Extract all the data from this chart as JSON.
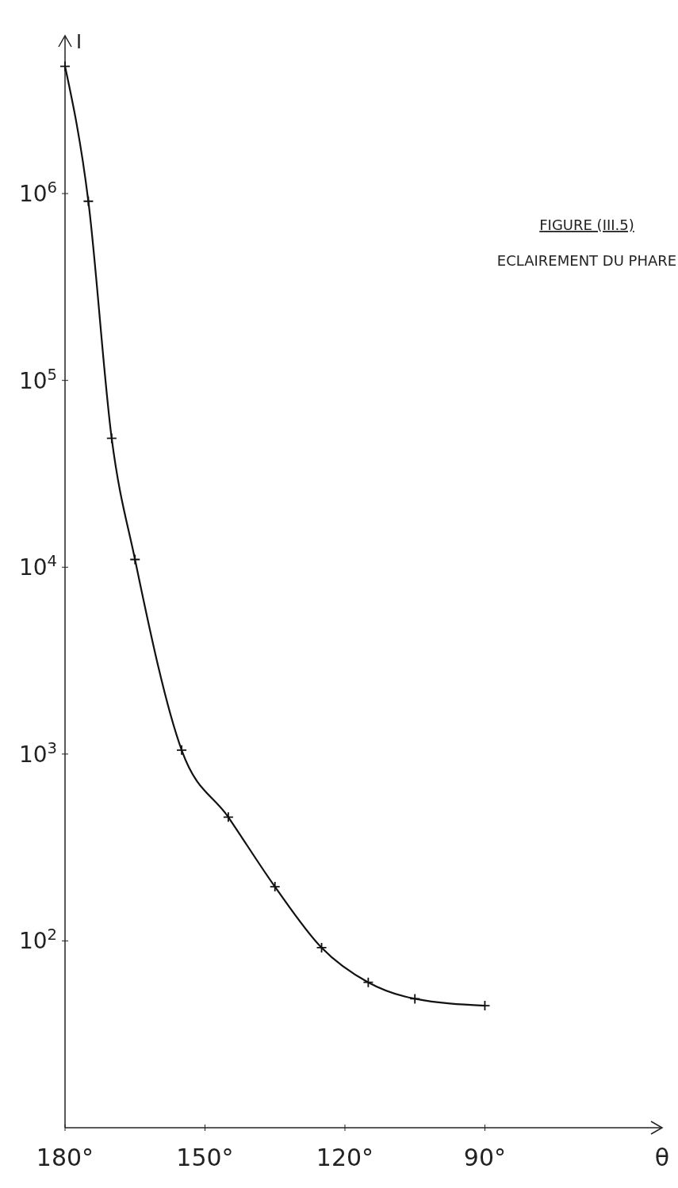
{
  "chart_data": {
    "type": "line",
    "title": "FIGURE (III.5)",
    "subtitle": "ECLAIREMENT DU PHARE",
    "xlabel": "θ",
    "ylabel": "I",
    "x": [
      180,
      175,
      170,
      165,
      155,
      145,
      135,
      125,
      115,
      105,
      90
    ],
    "series": [
      {
        "color": "#111111",
        "values": [
          4800000,
          910000,
          49000,
          11000,
          1050,
          460,
          195,
          92,
          60,
          49,
          45
        ]
      }
    ],
    "xlim": [
      180,
      52
    ],
    "xticks": [
      {
        "value": 180,
        "label": "180°"
      },
      {
        "value": 150,
        "label": "150°"
      },
      {
        "value": 120,
        "label": "120°"
      },
      {
        "value": 90,
        "label": "90°"
      }
    ],
    "ylim": [
      10,
      7000000
    ],
    "log": "y",
    "yticks": [
      {
        "value": 100,
        "label": "10$^{2}$"
      },
      {
        "value": 1000,
        "label": "10$^{3}$"
      },
      {
        "value": 10000,
        "label": "10$^{4}$"
      },
      {
        "value": 100000,
        "label": "10$^{5}$"
      },
      {
        "value": 1000000,
        "label": "10$^{6}$"
      }
    ],
    "grid": false,
    "marker": "cross",
    "line_style": "solid"
  }
}
